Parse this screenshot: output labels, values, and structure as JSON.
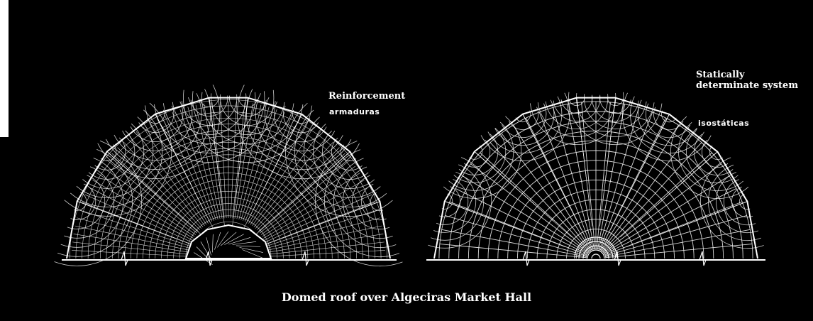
{
  "left_diagram": {
    "label_en": "Reinforcement",
    "label_es": "armaduras"
  },
  "right_diagram": {
    "label_en_line1": "Statically",
    "label_en_line2": "determinate system",
    "label_es": "isostáticas"
  },
  "caption": "Domed roof over Algeciras Market Hall",
  "colors": {
    "background": "#000000",
    "lines": "#ffffff"
  }
}
